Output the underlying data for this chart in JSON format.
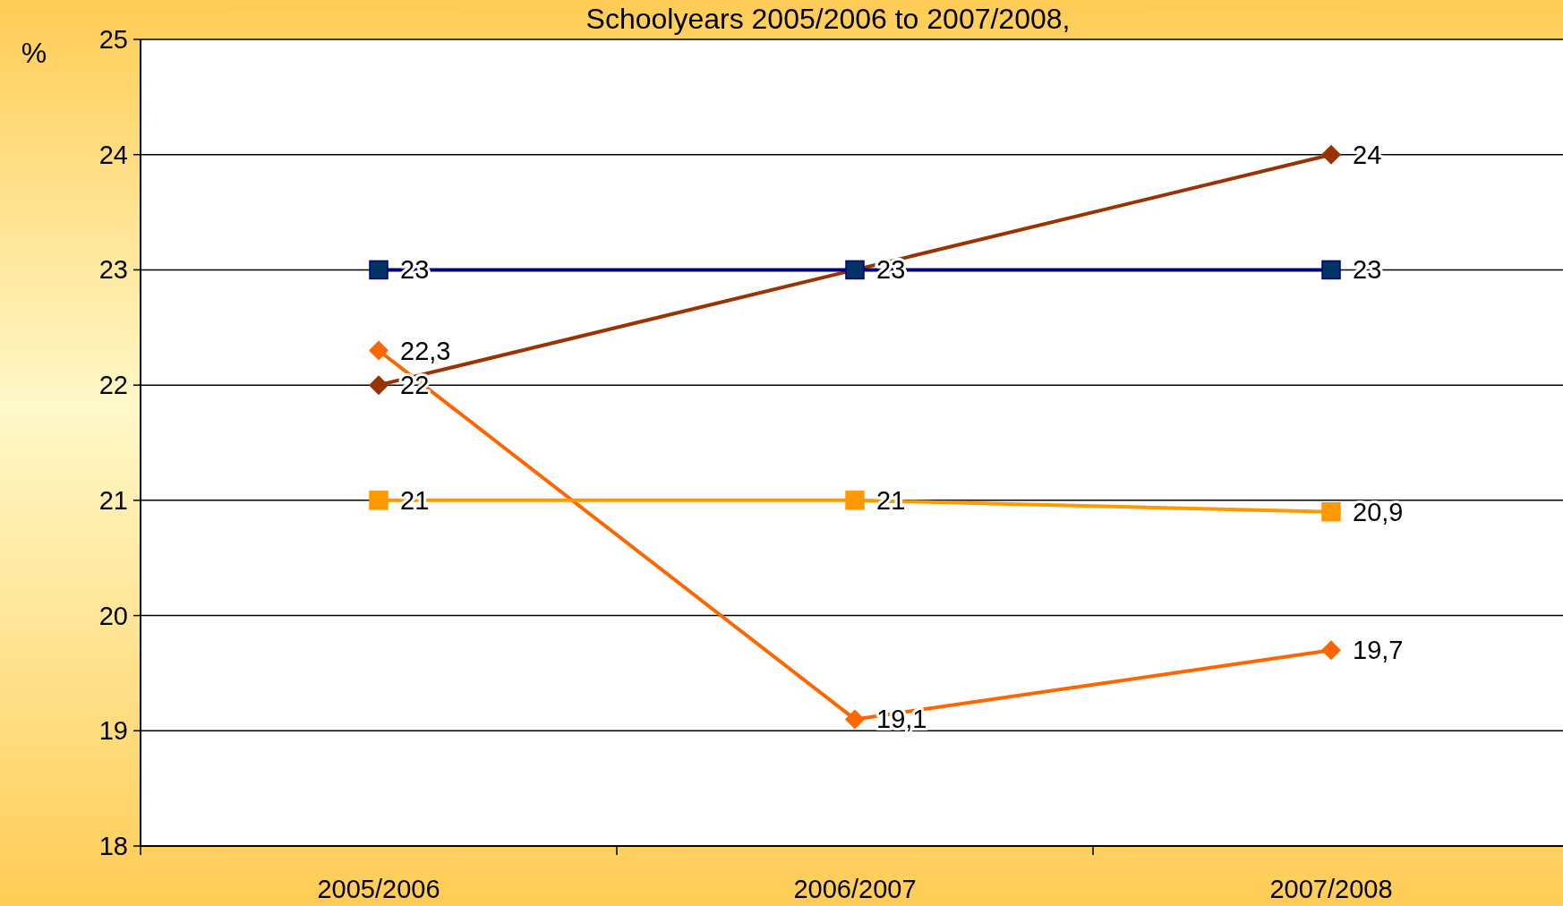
{
  "chart_data": {
    "type": "line",
    "title": "Schoolyears 2005/2006 to 2007/2008,",
    "ylabel": "%",
    "categories": [
      "2005/2006",
      "2006/2007",
      "2007/2008"
    ],
    "series": [
      {
        "color": "#993300",
        "marker": "diamond",
        "values": [
          22,
          23,
          24
        ],
        "value_labels": [
          "22",
          "23",
          "24"
        ]
      },
      {
        "color": "#000080",
        "marker": "square",
        "values": [
          23,
          23,
          23
        ],
        "value_labels": [
          "23",
          "23",
          "23"
        ]
      },
      {
        "color": "#ff6600",
        "marker": "diamond",
        "values": [
          22.3,
          19.1,
          19.7
        ],
        "value_labels": [
          "22,3",
          "19,1",
          "19,7"
        ]
      },
      {
        "color": "#ff9900",
        "marker": "square",
        "values": [
          21,
          21,
          20.9
        ],
        "value_labels": [
          "21",
          "21",
          "20,9"
        ]
      }
    ],
    "ylim": [
      18,
      25
    ],
    "yticks": [
      18,
      19,
      20,
      21,
      22,
      23,
      24,
      25
    ],
    "grid": "y"
  }
}
